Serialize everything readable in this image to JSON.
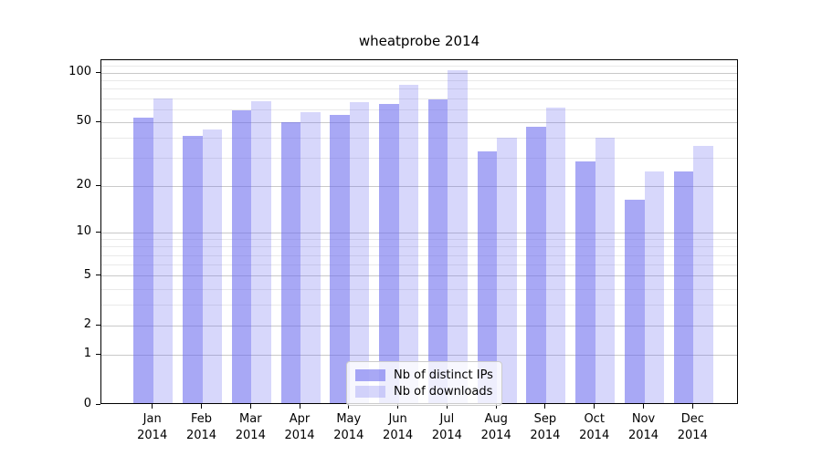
{
  "title": "wheatprobe 2014",
  "chart_data": {
    "type": "bar",
    "title": "wheatprobe 2014",
    "categories": [
      "Jan\n2014",
      "Feb\n2014",
      "Mar\n2014",
      "Apr\n2014",
      "May\n2014",
      "Jun\n2014",
      "Jul\n2014",
      "Aug\n2014",
      "Sep\n2014",
      "Oct\n2014",
      "Nov\n2014",
      "Dec\n2014"
    ],
    "series": [
      {
        "name": "Nb of distinct IPs",
        "color": "#6666ee",
        "opacity": 0.57,
        "values": [
          52,
          40,
          58,
          49,
          54,
          63,
          67,
          32,
          46,
          28,
          16,
          24
        ]
      },
      {
        "name": "Nb of downloads",
        "color": "#6666ee",
        "opacity": 0.26,
        "values": [
          68,
          44,
          66,
          56,
          65,
          83,
          102,
          39,
          60,
          39,
          24,
          35
        ]
      }
    ],
    "yscale": "log1p",
    "ylim": [
      0,
      120
    ],
    "y_major_ticks": [
      0,
      1,
      2,
      5,
      10,
      20,
      50,
      100
    ],
    "y_minor_ticks": [
      3,
      4,
      6,
      7,
      8,
      9,
      30,
      40,
      60,
      70,
      80,
      90,
      110
    ],
    "xlabel": "",
    "ylabel": "",
    "grid": "horizontal",
    "legend_position": "lower-center"
  },
  "legend": {
    "items": [
      {
        "label": "Nb of distinct IPs"
      },
      {
        "label": "Nb of downloads"
      }
    ]
  },
  "colors": {
    "bar_base": "#6666ee",
    "grid_major": "#c9c9c9",
    "grid_minor": "#e9e9e9",
    "axis": "#000000",
    "background": "#ffffff"
  }
}
